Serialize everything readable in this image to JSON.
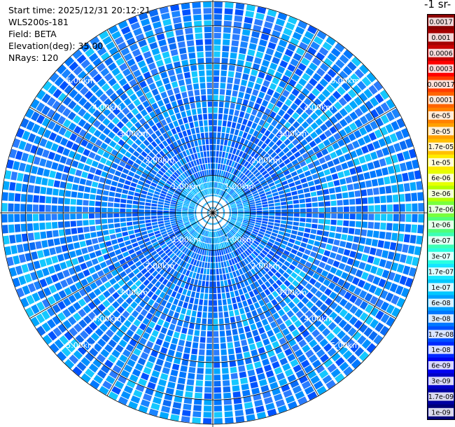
{
  "header": {
    "start_time": "Start time: 2025/12/31 20:12:21",
    "instrument": "WLS200s-181",
    "field": "Field: BETA",
    "elevation": "Elevation(deg): 35.00",
    "nrays": "NRays: 120"
  },
  "colorbar": {
    "unit_label": "-1 sr-",
    "ticks": [
      "0.0017",
      "0.001",
      "0.0006",
      "0.0003",
      "0.00017",
      "0.0001",
      "6e-05",
      "3e-05",
      "1.7e-05",
      "1e-05",
      "6e-06",
      "3e-06",
      "1.7e-06",
      "1e-06",
      "6e-07",
      "3e-07",
      "1.7e-07",
      "1e-07",
      "6e-08",
      "3e-08",
      "1.7e-08",
      "1e-08",
      "6e-09",
      "3e-09",
      "1.7e-09",
      "1e-09"
    ],
    "colors": [
      "#8b0000",
      "#a50000",
      "#c80000",
      "#ff0000",
      "#ff3c00",
      "#ff6400",
      "#ff8200",
      "#ffa000",
      "#ffc000",
      "#ffeb00",
      "#e6ff00",
      "#b4ff00",
      "#78ff3c",
      "#50ff78",
      "#3cffb4",
      "#28ffe1",
      "#14e6ff",
      "#00c8ff",
      "#00a0ff",
      "#0078ff",
      "#0050ff",
      "#0028ff",
      "#0000f0",
      "#0000c8",
      "#0000a0",
      "#000078"
    ]
  },
  "chart_data": {
    "type": "heatmap",
    "projection": "polar-ppi",
    "field": "BETA",
    "elevation_deg": 35.0,
    "n_rays": 120,
    "max_range_km": 5.65,
    "range_rings_km": [
      1,
      2,
      3,
      4,
      5
    ],
    "ring_labels": [
      "1.00km",
      "2.00km",
      "3.00km",
      "4.00km",
      "5.00km"
    ],
    "ring_label_directions": [
      "upper-left",
      "upper-right",
      "lower-left",
      "lower-right"
    ],
    "value_range": [
      1e-09,
      0.0017
    ],
    "dominant_values": [
      1.7e-07,
      1e-07,
      6e-08,
      3e-08
    ],
    "grid": true
  }
}
